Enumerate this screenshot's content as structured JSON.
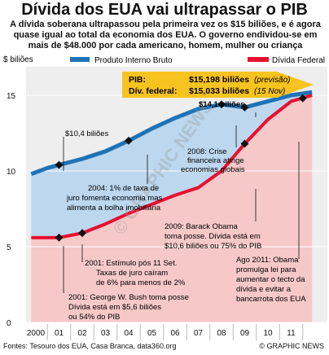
{
  "title": "Dívida dos EUA vai ultrapassar o PIB",
  "subtitle": "A dívida soberana ultrapassou pela primeira vez os $15 biliões, e é agora quase igual ao total da economia dos EUA. O governo endividou-se em mais de $48.000 por cada americano, homem, mulher ou criança",
  "footer": {
    "source": "Fontes: Tesouro dos EUA, Casa Branca, data360.org",
    "brand": "© GRAPHIC NEWS",
    "watermark": "© GRAPHIC NEWS"
  },
  "callout": {
    "pib_label": "PIB:",
    "pib_value": "$15,198 biliões",
    "pib_note": "(previsão)",
    "debt_label": "Dív. federal:",
    "debt_value": "$15,033 biliões",
    "debt_note": "(15 Nov)"
  },
  "chart_data": {
    "type": "line",
    "ylabel": "$ biliões",
    "ylim": [
      0,
      17
    ],
    "yticks": [
      0,
      5,
      10,
      15
    ],
    "x_ticks": [
      "2000",
      "01",
      "02",
      "03",
      "04",
      "05",
      "06",
      "07",
      "08",
      "09",
      "10",
      "11"
    ],
    "series": [
      {
        "name": "Produto Interno Bruto",
        "color": "#1f73b7",
        "x": [
          1999.8,
          2000.5,
          2001,
          2002,
          2003,
          2004,
          2005,
          2006,
          2007,
          2008,
          2009,
          2010,
          2011,
          2011.9
        ],
        "values": [
          9.8,
          10.2,
          10.4,
          10.8,
          11.3,
          12.0,
          12.8,
          13.5,
          14.1,
          14.4,
          14.2,
          14.6,
          15.0,
          15.2
        ]
      },
      {
        "name": "Dívida Federal",
        "color": "#e8102f",
        "x": [
          1999.8,
          2000.5,
          2001,
          2002,
          2003,
          2004,
          2005,
          2006,
          2007,
          2008,
          2009,
          2010,
          2011,
          2011.9
        ],
        "values": [
          5.6,
          5.6,
          5.6,
          5.9,
          6.5,
          7.2,
          7.8,
          8.4,
          8.9,
          10.0,
          11.8,
          13.4,
          14.6,
          15.0
        ]
      }
    ],
    "annotations": [
      {
        "lines": [
          "$10,4 biliões"
        ]
      },
      {
        "lines": [
          "$14,1 biliões"
        ]
      },
      {
        "lines": [
          "2004: 1% de taxa de",
          "juro fomenta economia mas",
          "alimenta a bolha imobiliária"
        ]
      },
      {
        "lines": [
          "2008: Crise",
          "financeira atinge",
          "economias globais"
        ]
      },
      {
        "lines": [
          "2009: Barack Obama",
          "toma posse. Dívida está em",
          "$10,6 biliões ou 75% do PIB"
        ]
      },
      {
        "lines": [
          "2001: Estímulo pós 11 Set.",
          "Taxas de juro caíram",
          "de 6% para menos de 2%"
        ]
      },
      {
        "lines": [
          "2001: George W. Bush toma posse",
          "Dívida está em $5,6 biliões",
          "ou 54% do PIB"
        ]
      },
      {
        "lines": [
          "Ago 2011: Obama",
          "promulga lei para",
          "aumentar o tecto da",
          "dívida e evitar a",
          "bancarrota dos EUA"
        ]
      }
    ]
  }
}
